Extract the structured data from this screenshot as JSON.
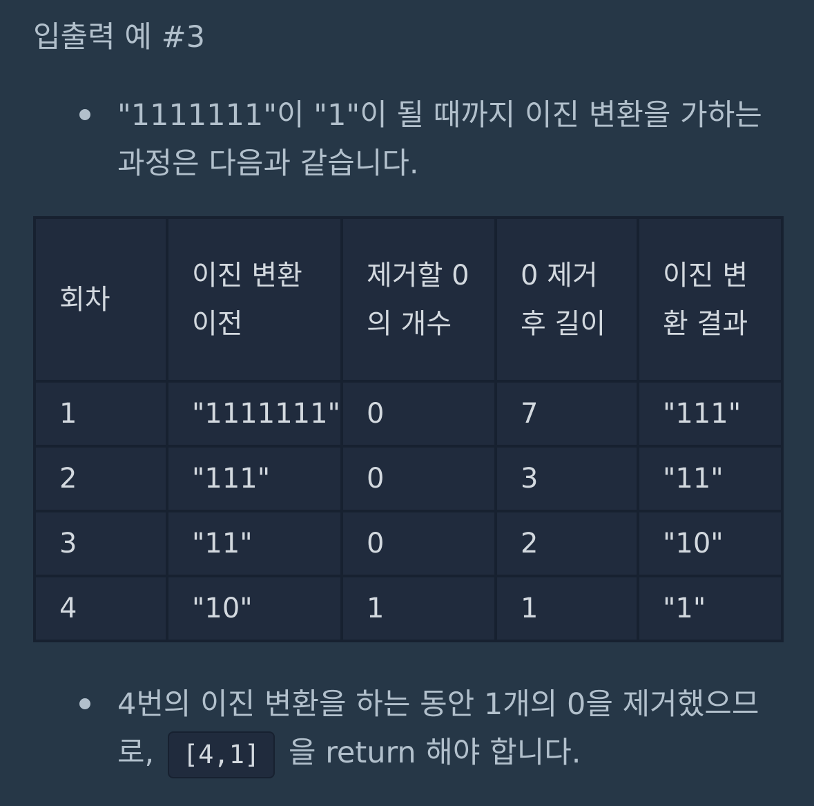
{
  "heading": "입출력 예 #3",
  "bullets": {
    "first": "\"1111111\"이 \"1\"이 될 때까지 이진 변환을 가하는 과정은 다음과 같습니다.",
    "second_before": "4번의 이진 변환을 하는 동안 1개의 0을 제거했으므로,",
    "second_code": "[4,1]",
    "second_after": "을 return 해야 합니다."
  },
  "table": {
    "headers": [
      "회차",
      "이진 변환 이전",
      "제거할 0의 개수",
      "0 제거 후 길이",
      "이진 변환 결과"
    ],
    "rows": [
      [
        "1",
        "\"1111111\"",
        "0",
        "7",
        "\"111\""
      ],
      [
        "2",
        "\"111\"",
        "0",
        "3",
        "\"11\""
      ],
      [
        "3",
        "\"11\"",
        "0",
        "2",
        "\"10\""
      ],
      [
        "4",
        "\"10\"",
        "1",
        "1",
        "\"1\""
      ]
    ]
  }
}
